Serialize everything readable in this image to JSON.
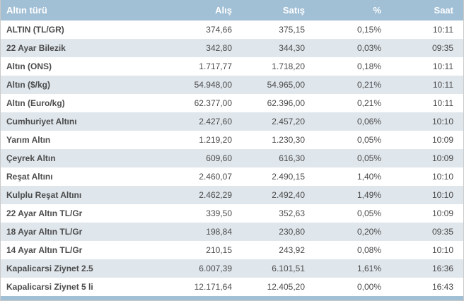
{
  "table": {
    "columns": [
      "Altın türü",
      "Alış",
      "Satış",
      "%",
      "Saat"
    ],
    "rows": [
      {
        "name": "ALTIN (TL/GR)",
        "alis": "374,66",
        "satis": "375,15",
        "pct": "0,15%",
        "saat": "10:11"
      },
      {
        "name": "22 Ayar Bilezik",
        "alis": "342,80",
        "satis": "344,30",
        "pct": "0,03%",
        "saat": "09:35"
      },
      {
        "name": "Altın (ONS)",
        "alis": "1.717,77",
        "satis": "1.718,20",
        "pct": "0,18%",
        "saat": "10:11"
      },
      {
        "name": "Altın ($/kg)",
        "alis": "54.948,00",
        "satis": "54.965,00",
        "pct": "0,21%",
        "saat": "10:11"
      },
      {
        "name": "Altın (Euro/kg)",
        "alis": "62.377,00",
        "satis": "62.396,00",
        "pct": "0,21%",
        "saat": "10:11"
      },
      {
        "name": "Cumhuriyet Altını",
        "alis": "2.427,60",
        "satis": "2.457,20",
        "pct": "0,06%",
        "saat": "10:10"
      },
      {
        "name": "Yarım Altın",
        "alis": "1.219,20",
        "satis": "1.230,30",
        "pct": "0,05%",
        "saat": "10:09"
      },
      {
        "name": "Çeyrek Altın",
        "alis": "609,60",
        "satis": "616,30",
        "pct": "0,05%",
        "saat": "10:09"
      },
      {
        "name": "Reşat Altını",
        "alis": "2.460,07",
        "satis": "2.490,15",
        "pct": "1,40%",
        "saat": "10:10"
      },
      {
        "name": "Kulplu Reşat Altını",
        "alis": "2.462,29",
        "satis": "2.492,40",
        "pct": "1,49%",
        "saat": "10:10"
      },
      {
        "name": "22 Ayar Altın TL/Gr",
        "alis": "339,50",
        "satis": "352,63",
        "pct": "0,05%",
        "saat": "10:09"
      },
      {
        "name": "18 Ayar Altın TL/Gr",
        "alis": "198,84",
        "satis": "230,80",
        "pct": "0,20%",
        "saat": "09:35"
      },
      {
        "name": "14 Ayar Altın TL/Gr",
        "alis": "210,15",
        "satis": "243,92",
        "pct": "0,08%",
        "saat": "10:10"
      },
      {
        "name": "Kapalicarsi Ziynet 2.5",
        "alis": "6.007,39",
        "satis": "6.101,51",
        "pct": "1,61%",
        "saat": "16:36"
      },
      {
        "name": "Kapalicarsi Ziynet 5 li",
        "alis": "12.171,64",
        "satis": "12.405,20",
        "pct": "0,00%",
        "saat": "16:43"
      }
    ]
  },
  "colors": {
    "header_bg": "#a1bfd5",
    "alt_row_bg": "#dfe6ec",
    "text": "#4c4c4c"
  }
}
